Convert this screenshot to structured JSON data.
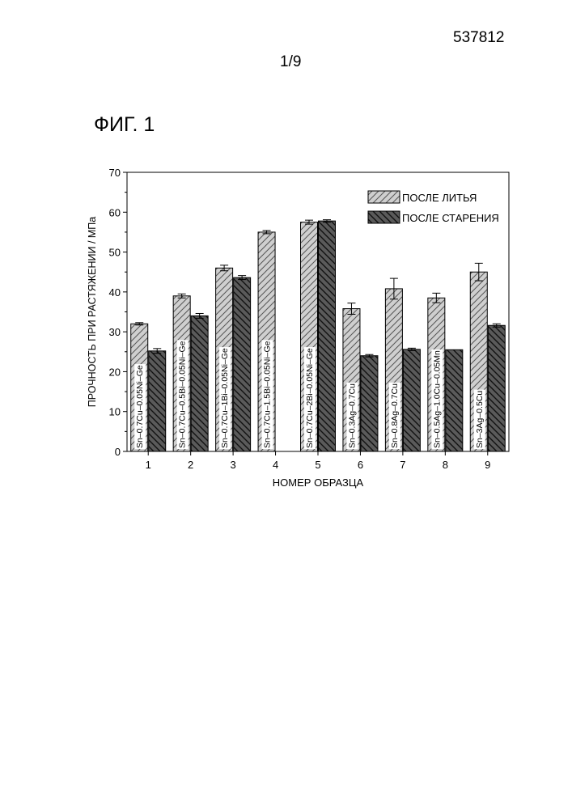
{
  "header": {
    "doc_number": "537812",
    "page_number": "1/9",
    "figure_label": "ФИГ. 1"
  },
  "chart_data": {
    "type": "bar",
    "title": "",
    "xlabel": "НОМЕР ОБРАЗЦА",
    "ylabel": "ПРОЧНОСТЬ ПРИ РАСТЯЖЕНИИ / МПа",
    "ylim": [
      0,
      70
    ],
    "yticks": [
      0,
      10,
      20,
      30,
      40,
      50,
      60,
      70
    ],
    "categories": [
      "1",
      "2",
      "3",
      "4",
      "5",
      "6",
      "7",
      "8",
      "9"
    ],
    "sample_labels": [
      "Sn–0.7Cu–0.05Ni–Ge",
      "Sn–0.7Cu–0.5Bi–0.05Ni–Ge",
      "Sn–0.7Cu–1Bi–0.05Ni–Ge",
      "Sn–0.7Cu–1.5Bi–0.05Ni–Ge",
      "Sn–0.7Cu–2Bi–0.05Ni–Ge",
      "Sn–0.3Ag–0.7Cu",
      "Sn–0.8Ag–0.7Cu",
      "Sn–0.5Ag–1.0Cu–0.05Mn",
      "Sn–3Ag–0.5Cu"
    ],
    "series": [
      {
        "name": "ПОСЛЕ ЛИТЬЯ",
        "color": "#c8c8c8",
        "values": [
          32.0,
          39.0,
          46.0,
          55.0,
          57.5,
          35.8,
          40.8,
          38.5,
          45.0
        ],
        "errors": [
          0.3,
          0.5,
          0.7,
          0.4,
          0.5,
          1.4,
          2.6,
          1.2,
          2.2
        ]
      },
      {
        "name": "ПОСЛЕ СТАРЕНИЯ",
        "color": "#555555",
        "values": [
          25.2,
          34.0,
          43.6,
          null,
          57.8,
          24.0,
          25.6,
          25.5,
          31.6
        ],
        "errors": [
          0.6,
          0.6,
          0.5,
          null,
          0.3,
          0.3,
          0.3,
          0,
          0.4
        ]
      }
    ],
    "legend_position": "top-right",
    "grid": false
  }
}
